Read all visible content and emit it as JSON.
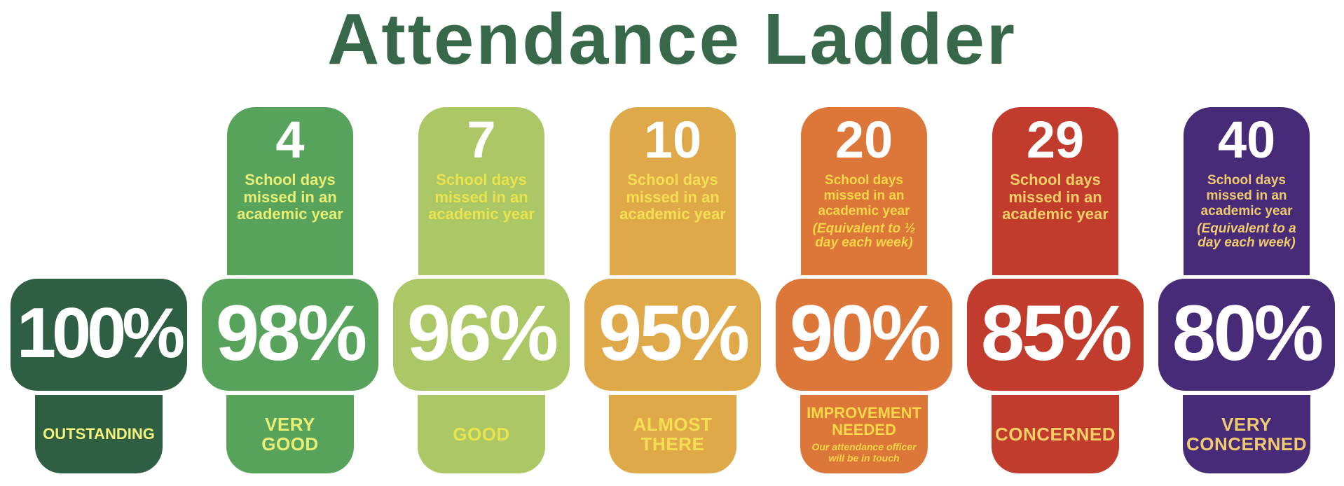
{
  "title": {
    "text": "Attendance Ladder",
    "color": "#37684a"
  },
  "background_color": "#ffffff",
  "ladder": {
    "columns": [
      {
        "id": "outstanding",
        "block_color": "#2e5f43",
        "text_color": "#f2f17c",
        "percent": "100%",
        "days": "",
        "days_text": "",
        "days_note": "",
        "label_lines": [
          "OUTSTANDING"
        ],
        "label_note": ""
      },
      {
        "id": "very-good",
        "block_color": "#57a35c",
        "text_color": "#e9ee74",
        "percent": "98%",
        "days": "4",
        "days_text": "School days missed in an academic year",
        "days_note": "",
        "label_lines": [
          "VERY",
          "GOOD"
        ],
        "label_note": ""
      },
      {
        "id": "good",
        "block_color": "#abc766",
        "text_color": "#e9e44e",
        "percent": "96%",
        "days": "7",
        "days_text": "School days missed in an academic year",
        "days_note": "",
        "label_lines": [
          "GOOD"
        ],
        "label_note": ""
      },
      {
        "id": "almost-there",
        "block_color": "#dfa94a",
        "text_color": "#f4df52",
        "percent": "95%",
        "days": "10",
        "days_text": "School days missed in an academic year",
        "days_note": "",
        "label_lines": [
          "ALMOST",
          "THERE"
        ],
        "label_note": ""
      },
      {
        "id": "improvement-needed",
        "block_color": "#dd7639",
        "text_color": "#f8d748",
        "percent": "90%",
        "days": "20",
        "days_text": "School days missed in an academic year",
        "days_note": "(Equivalent to ½ day each week)",
        "label_lines": [
          "IMPROVEMENT",
          "NEEDED"
        ],
        "label_note": "Our attendance officer will be in touch"
      },
      {
        "id": "concerned",
        "block_color": "#c23c2d",
        "text_color": "#f4cf68",
        "percent": "85%",
        "days": "29",
        "days_text": "School days missed in an academic year",
        "days_note": "",
        "label_lines": [
          "CONCERNED"
        ],
        "label_note": ""
      },
      {
        "id": "very-concerned",
        "block_color": "#472b78",
        "text_color": "#f0ca6e",
        "percent": "80%",
        "days": "40",
        "days_text": "School days missed in an academic year",
        "days_note": "(Equivalent to a day each week)",
        "label_lines": [
          "VERY",
          "CONCERNED"
        ],
        "label_note": ""
      }
    ]
  }
}
